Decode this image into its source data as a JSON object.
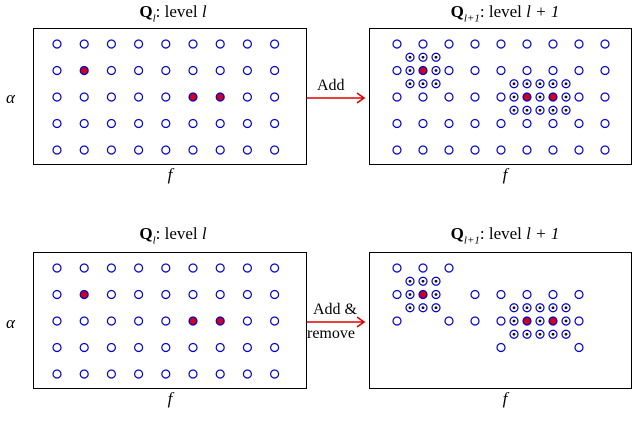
{
  "colors": {
    "grid_point": "#0000cc",
    "selected_fill": "#cc0022",
    "arrow": "#dd0000",
    "panel_border": "#000000"
  },
  "rows": [
    {
      "left_title": {
        "q": "Q",
        "sub": "l",
        "text": ": level ",
        "level": "l"
      },
      "right_title": {
        "q": "Q",
        "sub": "l+1",
        "text": ": level ",
        "level": "l + 1"
      },
      "left_xlabel": "f",
      "right_xlabel": "f",
      "ylabel": "α",
      "arrow_label_line1": "Add",
      "arrow_label_line2": ""
    },
    {
      "left_title": {
        "q": "Q",
        "sub": "l",
        "text": ": level ",
        "level": "l"
      },
      "right_title": {
        "q": "Q",
        "sub": "l+1",
        "text": ": level ",
        "level": "l + 1"
      },
      "left_xlabel": "f",
      "right_xlabel": "f",
      "ylabel": "α",
      "arrow_label_line1": "Add &",
      "arrow_label_line2": "remove"
    }
  ],
  "grid": {
    "cols": 9,
    "rows": 5,
    "selected_points": [
      [
        1,
        1
      ],
      [
        5,
        2
      ],
      [
        6,
        2
      ]
    ]
  }
}
